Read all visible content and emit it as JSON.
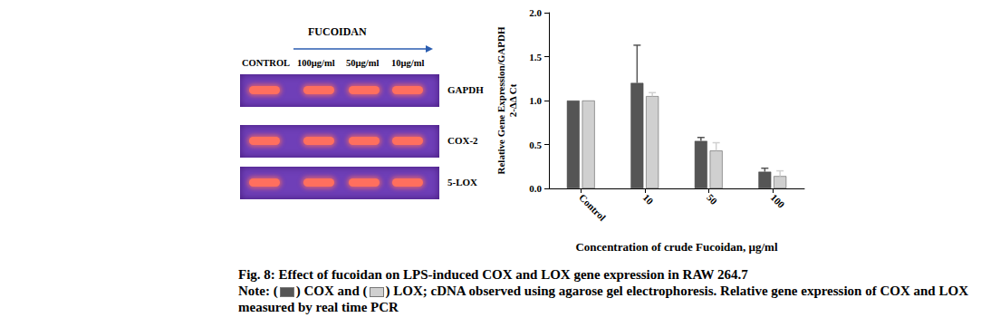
{
  "chart_data": {
    "type": "bar",
    "x_label": "Concentration of crude Fucoidan, µg/ml",
    "y_label": "Relative Gene Expression/GAPDH\n2-ΔΔ Ct",
    "categories": [
      "Control",
      "10",
      "50",
      "100"
    ],
    "series": [
      {
        "name": "COX",
        "color": "#555555",
        "values": [
          1.0,
          1.2,
          0.54,
          0.19
        ],
        "errors": [
          0,
          0.43,
          0.04,
          0.04
        ]
      },
      {
        "name": "LOX",
        "color": "#d0d0d0",
        "values": [
          1.0,
          1.05,
          0.43,
          0.14
        ],
        "errors": [
          0,
          0.04,
          0.09,
          0.06
        ]
      }
    ],
    "ylim": [
      0,
      2.0
    ],
    "yticks": [
      {
        "value": 0,
        "label": "0.0"
      },
      {
        "value": 0.5,
        "label": "0.5"
      },
      {
        "value": 1.0,
        "label": "1.0"
      },
      {
        "value": 1.5,
        "label": "1.5"
      },
      {
        "value": 2.0,
        "label": "2.0"
      }
    ],
    "grid": false
  },
  "gel": {
    "title": "FUCOIDAN",
    "lanes": [
      "CONTROL",
      "100µg/ml",
      "50µg/ml",
      "10µg/ml"
    ],
    "rows": [
      "GAPDH",
      "COX-2",
      "5-LOX"
    ]
  },
  "caption": {
    "title": "Fig. 8: Effect of fucoidan on LPS-induced COX and LOX gene expression in RAW 264.7",
    "note": [
      {
        "text": "Note: ("
      },
      {
        "swatch": 0
      },
      {
        "text": ") "
      },
      {
        "series_name": 0
      },
      {
        "text": " and ("
      },
      {
        "swatch": 1
      },
      {
        "text": ") "
      },
      {
        "series_name": 1
      },
      {
        "text": "; cDNA observed using agarose gel electrophoresis. Relative gene expression of COX and LOX measured by real time PCR"
      }
    ]
  }
}
